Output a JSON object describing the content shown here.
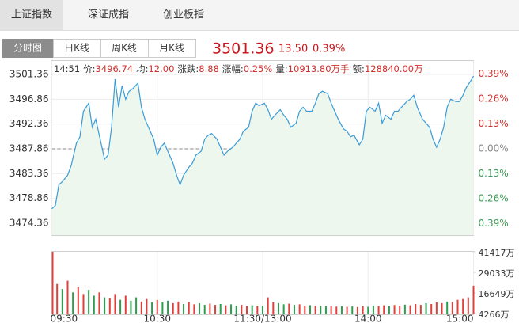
{
  "tabs": [
    "上证指数",
    "深证成指",
    "创业板指"
  ],
  "views": [
    "分时图",
    "日K线",
    "周K线",
    "月K线"
  ],
  "quote": {
    "price": "3501.36",
    "change": "13.50",
    "percent": "0.39%"
  },
  "chart_data": [
    {
      "type": "line",
      "info": {
        "time": "14:51",
        "items": [
          {
            "label": "价:",
            "value": "3496.74"
          },
          {
            "label": "均:",
            "value": "12.00"
          },
          {
            "label": "涨跌:",
            "value": "8.88"
          },
          {
            "label": "涨幅:",
            "value": "0.25%"
          },
          {
            "label": "量:",
            "value": "10913.80万手"
          },
          {
            "label": "额:",
            "value": "128840.00万"
          }
        ]
      },
      "x": [
        0,
        2,
        4,
        6,
        9,
        11,
        14,
        16,
        18,
        21,
        23,
        25,
        27,
        30,
        32,
        34,
        36,
        38,
        40,
        42,
        44,
        46,
        49,
        51,
        53,
        55,
        58,
        60,
        62,
        64,
        67,
        69,
        71,
        73,
        75,
        78,
        80,
        82,
        85,
        87,
        89,
        91,
        94,
        96,
        98,
        100,
        103,
        105,
        107,
        109,
        112,
        114,
        116,
        118,
        121,
        123,
        125,
        127,
        130,
        132,
        134,
        136,
        139,
        141,
        143,
        145,
        148,
        150,
        152,
        154,
        157,
        159,
        161,
        163,
        166,
        168,
        170,
        172,
        175,
        177,
        179,
        181,
        184,
        186,
        188,
        190,
        193,
        195,
        197,
        199,
        202,
        204,
        206,
        208,
        211,
        213,
        215,
        217,
        219,
        221,
        223,
        225,
        227,
        230,
        232,
        234,
        236,
        239,
        240
      ],
      "series": [
        {
          "color": "#3a9bd5",
          "fill": "#eef7ee",
          "values": [
            3476.97,
            3477.55,
            3481.33,
            3481.91,
            3483.07,
            3484.81,
            3488.88,
            3490.04,
            3494.68,
            3496.14,
            3491.78,
            3493.23,
            3490.33,
            3485.97,
            3486.7,
            3491.78,
            3500.49,
            3495.41,
            3499.33,
            3496.86,
            3498.31,
            3498.75,
            3499.77,
            3495.41,
            3493.23,
            3491.78,
            3489.6,
            3486.7,
            3488.15,
            3488.88,
            3486.7,
            3485.25,
            3483.07,
            3481.33,
            3483.07,
            3484.52,
            3485.25,
            3486.7,
            3487.42,
            3489.6,
            3490.33,
            3490.62,
            3489.6,
            3488.15,
            3486.7,
            3487.42,
            3488.15,
            3488.88,
            3489.6,
            3491.05,
            3491.78,
            3494.68,
            3496.14,
            3495.7,
            3496.14,
            3494.97,
            3493.23,
            3493.96,
            3494.97,
            3493.96,
            3493.23,
            3491.78,
            3492.51,
            3494.68,
            3495.41,
            3494.68,
            3494.68,
            3496.14,
            3497.88,
            3498.31,
            3497.88,
            3496.14,
            3494.68,
            3493.23,
            3491.49,
            3491.05,
            3490.04,
            3490.33,
            3488.59,
            3489.6,
            3494.68,
            3495.41,
            3494.68,
            3496.14,
            3492.51,
            3493.96,
            3493.23,
            3494.68,
            3494.68,
            3495.41,
            3496.43,
            3496.86,
            3497.59,
            3495.41,
            3493.23,
            3492.51,
            3491.78,
            3489.6,
            3488.15,
            3489.6,
            3491.78,
            3495.41,
            3496.86,
            3496.43,
            3496.43,
            3497.59,
            3499.04,
            3500.49,
            3501.07
          ]
        }
      ],
      "xlim": [
        0,
        240
      ],
      "xticks": [
        {
          "value": 0,
          "label": "09:30"
        },
        {
          "value": 60,
          "label": "10:30"
        },
        {
          "value": 120,
          "label": "11:30/13:00"
        },
        {
          "value": 180,
          "label": "14:00"
        },
        {
          "value": 240,
          "label": "15:00"
        }
      ],
      "ylim": [
        3472.2,
        3503.8
      ],
      "yticks": [
        3501.36,
        3496.86,
        3492.36,
        3487.86,
        3483.36,
        3478.86,
        3474.36
      ],
      "y2lim": [
        -0.449,
        0.457
      ],
      "y2ticks": [
        {
          "value": 0.39,
          "label": "0.39%"
        },
        {
          "value": 0.26,
          "label": "0.26%"
        },
        {
          "value": 0.13,
          "label": "0.13%"
        },
        {
          "value": 0,
          "label": "0.00%"
        },
        {
          "value": -0.13,
          "label": "0.13%"
        },
        {
          "value": -0.26,
          "label": "0.26%"
        },
        {
          "value": -0.39,
          "label": "0.39%"
        }
      ],
      "up_color": "#d0312d",
      "down_color": "#3a9a55",
      "grid": true
    },
    {
      "type": "bar",
      "x": [
        0,
        3,
        6,
        9,
        12,
        15,
        18,
        21,
        24,
        27,
        30,
        33,
        36,
        39,
        42,
        45,
        48,
        51,
        54,
        57,
        60,
        63,
        66,
        69,
        72,
        75,
        78,
        81,
        84,
        87,
        90,
        93,
        96,
        99,
        102,
        105,
        108,
        111,
        114,
        117,
        120,
        123,
        126,
        129,
        132,
        135,
        138,
        141,
        144,
        147,
        150,
        153,
        156,
        159,
        162,
        165,
        168,
        171,
        174,
        177,
        180,
        183,
        186,
        189,
        192,
        195,
        198,
        201,
        204,
        207,
        210,
        213,
        216,
        219,
        222,
        225,
        228,
        231,
        234,
        237,
        240
      ],
      "values": [
        41417,
        22000,
        19000,
        24000,
        17000,
        20000,
        16000,
        18500,
        15000,
        17000,
        14000,
        13500,
        16000,
        12500,
        15000,
        12000,
        14000,
        11500,
        13000,
        11000,
        12500,
        11000,
        12000,
        10500,
        11500,
        10000,
        11000,
        9800,
        10500,
        9500,
        10200,
        9500,
        10000,
        9200,
        9800,
        9000,
        9500,
        8800,
        9200,
        8600,
        9000,
        14000,
        11000,
        10500,
        9800,
        10200,
        9500,
        9800,
        9000,
        9300,
        8800,
        9000,
        8600,
        8800,
        8400,
        8700,
        8300,
        8500,
        8200,
        8600,
        8300,
        9000,
        8700,
        9200,
        8800,
        9400,
        9000,
        9600,
        9200,
        10000,
        9500,
        10500,
        10000,
        11000,
        10500,
        11500,
        11200,
        12500,
        13000,
        14000,
        21000
      ],
      "colors": [
        "#e0403c",
        "#e0403c",
        "#2d9d4e",
        "#e0403c",
        "#2d9d4e",
        "#e0403c",
        "#e0403c",
        "#2d9d4e",
        "#2d9d4e",
        "#e0403c",
        "#2d9d4e",
        "#e0403c",
        "#e0403c",
        "#2d9d4e",
        "#e0403c",
        "#2d9d4e",
        "#2d9d4e",
        "#e0403c",
        "#e0403c",
        "#2d9d4e",
        "#e0403c",
        "#2d9d4e",
        "#2d9d4e",
        "#e0403c",
        "#e0403c",
        "#2d9d4e",
        "#e0403c",
        "#e0403c",
        "#2d9d4e",
        "#2d9d4e",
        "#e0403c",
        "#e0403c",
        "#2d9d4e",
        "#e0403c",
        "#2d9d4e",
        "#2d9d4e",
        "#e0403c",
        "#e0403c",
        "#2d9d4e",
        "#e0403c",
        "#2d9d4e",
        "#e0403c",
        "#e0403c",
        "#2d9d4e",
        "#2d9d4e",
        "#e0403c",
        "#2d9d4e",
        "#e0403c",
        "#e0403c",
        "#2d9d4e",
        "#e0403c",
        "#2d9d4e",
        "#2d9d4e",
        "#e0403c",
        "#e0403c",
        "#2d9d4e",
        "#e0403c",
        "#2d9d4e",
        "#e0403c",
        "#e0403c",
        "#2d9d4e",
        "#2d9d4e",
        "#e0403c",
        "#e0403c",
        "#2d9d4e",
        "#e0403c",
        "#e0403c",
        "#2d9d4e",
        "#e0403c",
        "#e0403c",
        "#e0403c",
        "#2d9d4e",
        "#e0403c",
        "#e0403c",
        "#e0403c",
        "#2d9d4e",
        "#e0403c",
        "#e0403c",
        "#e0403c",
        "#e0403c",
        "#e0403c"
      ],
      "xlim": [
        0,
        240
      ],
      "ylim": [
        3800,
        41417
      ],
      "yticks": [
        {
          "value": 41417,
          "label": "41417万"
        },
        {
          "value": 29033,
          "label": "29033万"
        },
        {
          "value": 16649,
          "label": "16649万"
        },
        {
          "value": 4266,
          "label": "4266万"
        }
      ]
    }
  ]
}
